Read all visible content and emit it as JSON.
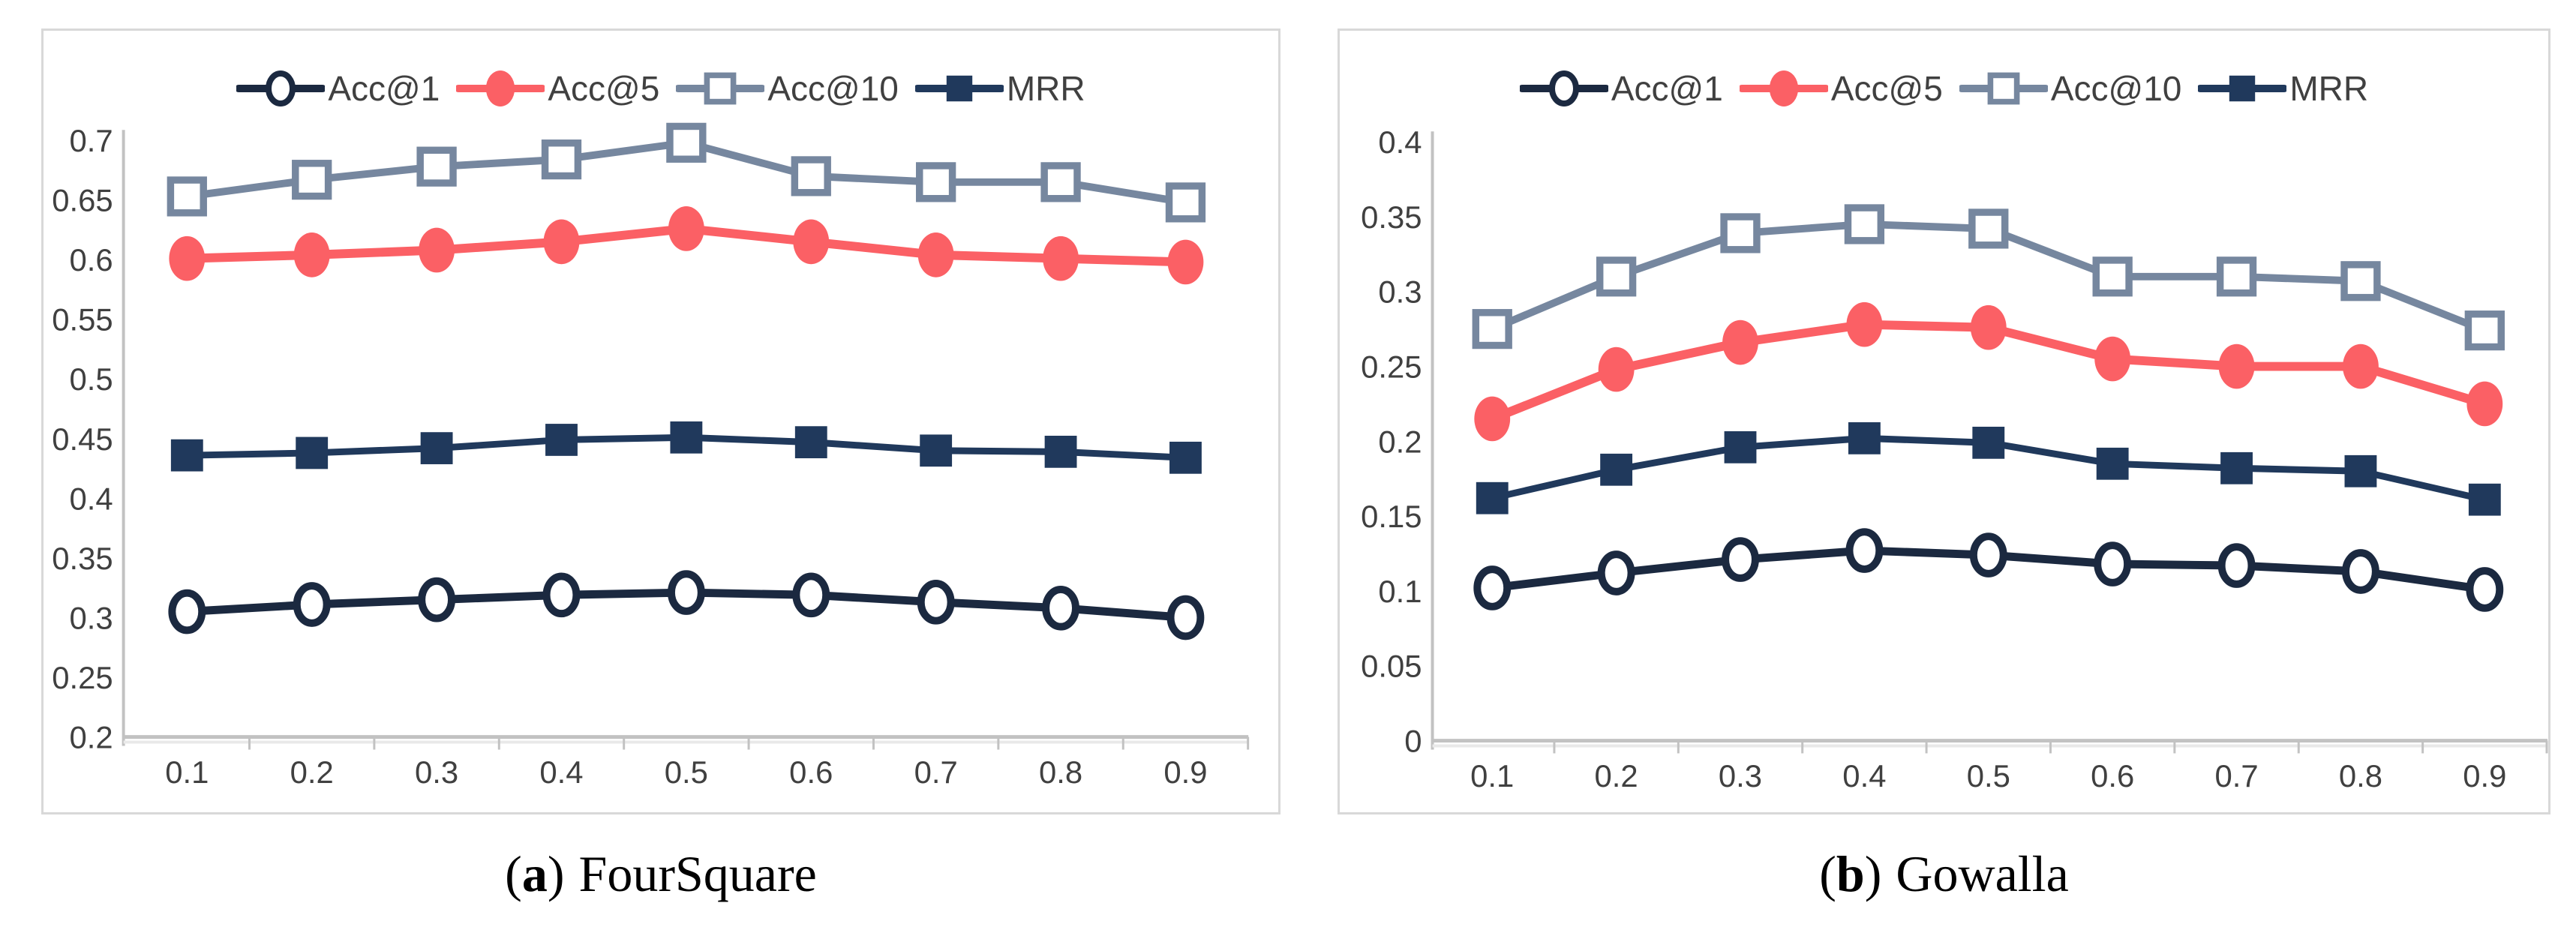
{
  "captions": [
    {
      "open": "(",
      "letter": "a",
      "close": ")",
      "title": "FourSquare"
    },
    {
      "open": "(",
      "letter": "b",
      "close": ")",
      "title": "Gowalla"
    }
  ],
  "colors": {
    "acc1": "#1b2940",
    "acc5": "#fb6065",
    "acc10": "#76879f",
    "mrr": "#20395c",
    "axis": "#c2c2c2",
    "tick_text": "#404040"
  },
  "chart_data": [
    {
      "type": "line",
      "title": "",
      "xlabel": "",
      "ylabel": "",
      "grid": false,
      "legend_position": "top",
      "x": [
        0.1,
        0.2,
        0.3,
        0.4,
        0.5,
        0.6,
        0.7,
        0.8,
        0.9
      ],
      "ylim": [
        0.2,
        0.7
      ],
      "yticks": [
        0.7,
        0.65,
        0.6,
        0.55,
        0.5,
        0.45,
        0.4,
        0.35,
        0.3,
        0.25,
        0.2
      ],
      "series": [
        {
          "name": "Acc@1",
          "marker": "open-circle",
          "color": "#1b2940",
          "values": [
            0.305,
            0.311,
            0.315,
            0.319,
            0.321,
            0.319,
            0.313,
            0.308,
            0.3
          ]
        },
        {
          "name": "Acc@5",
          "marker": "filled-circle",
          "color": "#fb6065",
          "values": [
            0.601,
            0.604,
            0.608,
            0.615,
            0.626,
            0.615,
            0.604,
            0.601,
            0.598
          ]
        },
        {
          "name": "Acc@10",
          "marker": "open-square",
          "color": "#76879f",
          "values": [
            0.653,
            0.667,
            0.678,
            0.684,
            0.698,
            0.67,
            0.665,
            0.665,
            0.648
          ]
        },
        {
          "name": "MRR",
          "marker": "filled-square",
          "color": "#20395c",
          "values": [
            0.436,
            0.438,
            0.442,
            0.449,
            0.451,
            0.447,
            0.44,
            0.439,
            0.434
          ]
        }
      ]
    },
    {
      "type": "line",
      "title": "",
      "xlabel": "",
      "ylabel": "",
      "grid": false,
      "legend_position": "top",
      "x": [
        0.1,
        0.2,
        0.3,
        0.4,
        0.5,
        0.6,
        0.7,
        0.8,
        0.9
      ],
      "ylim": [
        0,
        0.4
      ],
      "yticks": [
        0.4,
        0.35,
        0.3,
        0.25,
        0.2,
        0.15,
        0.1,
        0.05,
        0
      ],
      "series": [
        {
          "name": "Acc@1",
          "marker": "open-circle",
          "color": "#1b2940",
          "values": [
            0.102,
            0.112,
            0.121,
            0.127,
            0.124,
            0.118,
            0.117,
            0.113,
            0.101
          ]
        },
        {
          "name": "Acc@5",
          "marker": "filled-circle",
          "color": "#fb6065",
          "values": [
            0.215,
            0.248,
            0.266,
            0.278,
            0.276,
            0.255,
            0.25,
            0.25,
            0.225
          ]
        },
        {
          "name": "Acc@10",
          "marker": "open-square",
          "color": "#76879f",
          "values": [
            0.275,
            0.31,
            0.339,
            0.345,
            0.342,
            0.31,
            0.31,
            0.307,
            0.274
          ]
        },
        {
          "name": "MRR",
          "marker": "filled-square",
          "color": "#20395c",
          "values": [
            0.162,
            0.181,
            0.196,
            0.202,
            0.199,
            0.185,
            0.182,
            0.18,
            0.161
          ]
        }
      ]
    }
  ]
}
